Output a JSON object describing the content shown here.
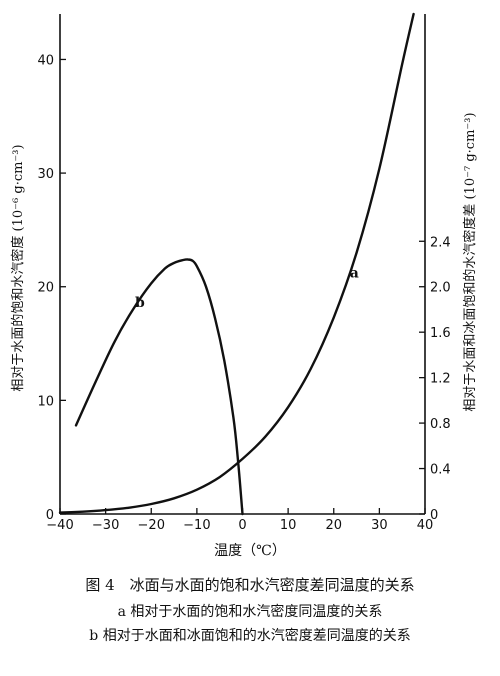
{
  "chart_data": {
    "type": "line",
    "xlabel": "温度（℃）",
    "ylabel_left": "相对于水面的饱和水汽密度 (10⁻⁶ g·cm⁻³)",
    "ylabel_right": "相对于水面和冰面饱和的水汽密度差 (10⁻⁷ g·cm⁻³)",
    "xlim": [
      -40,
      40
    ],
    "xticks": [
      -40,
      -30,
      -20,
      -10,
      0,
      10,
      20,
      30,
      40
    ],
    "xtick_labels": [
      "−40",
      "−30",
      "−20",
      "−10",
      "0",
      "10",
      "20",
      "30",
      "40"
    ],
    "ylim_left": [
      0,
      44
    ],
    "yticks_left": [
      0,
      10,
      20,
      30,
      40
    ],
    "ytick_labels_left": [
      "0",
      "10",
      "20",
      "30",
      "40"
    ],
    "ylim_right": [
      0,
      4.4
    ],
    "yticks_right": [
      0,
      0.4,
      0.8,
      1.2,
      1.6,
      2.0,
      2.4
    ],
    "ytick_labels_right": [
      "0",
      "0.4",
      "0.8",
      "1.2",
      "1.6",
      "2.0",
      "2.4"
    ],
    "grid": false,
    "series": [
      {
        "name": "a",
        "axis": "left",
        "x": [
          -40,
          -35,
          -30,
          -25,
          -20,
          -15,
          -10,
          -5,
          0,
          5,
          10,
          15,
          20,
          25,
          30,
          35,
          37.5
        ],
        "y": [
          0.12,
          0.2,
          0.34,
          0.55,
          0.88,
          1.38,
          2.14,
          3.25,
          4.85,
          6.8,
          9.4,
          12.8,
          17.3,
          23.0,
          30.4,
          39.6,
          44.0
        ]
      },
      {
        "name": "b",
        "axis": "right",
        "x": [
          -36.5,
          -32,
          -28,
          -24,
          -20,
          -17,
          -15,
          -13,
          -12,
          -11,
          -10,
          -8,
          -6,
          -4,
          -2,
          -1,
          0
        ],
        "y": [
          0.78,
          1.18,
          1.52,
          1.8,
          2.03,
          2.16,
          2.21,
          2.235,
          2.24,
          2.23,
          2.18,
          2.0,
          1.72,
          1.35,
          0.85,
          0.48,
          0.0
        ]
      }
    ]
  },
  "caption": {
    "title": "图 4　冰面与水面的饱和水汽密度差同温度的关系",
    "line_a": "a 相对于水面的饱和水汽密度同温度的关系",
    "line_b": "b 相对于水面和冰面饱和的水汽密度差同温度的关系"
  }
}
